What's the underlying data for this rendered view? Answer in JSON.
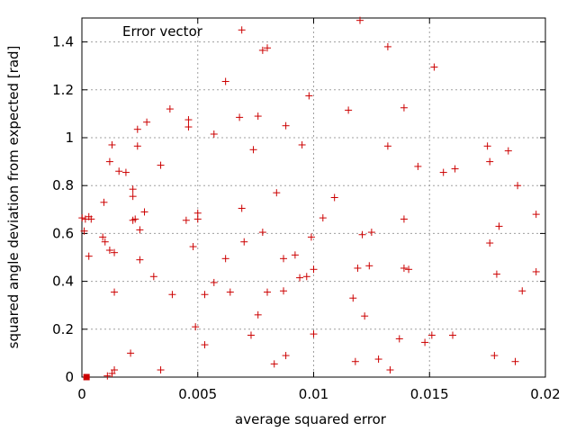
{
  "chart_data": {
    "type": "scatter",
    "xlabel": "average squared error",
    "ylabel": "squared angle deviation from expected [rad]",
    "xlim": [
      0,
      0.02
    ],
    "ylim": [
      0,
      1.5
    ],
    "x_ticks": [
      0,
      0.005,
      0.01,
      0.015,
      0.02
    ],
    "x_tick_labels": [
      "0",
      "0.005",
      "0.01",
      "0.015",
      "0.02"
    ],
    "y_ticks": [
      0,
      0.2,
      0.4,
      0.6,
      0.8,
      1.0,
      1.2,
      1.4
    ],
    "y_tick_labels": [
      "0",
      "0.2",
      "0.4",
      "0.6",
      "0.8",
      "1",
      "1.2",
      "1.4"
    ],
    "grid": true,
    "legend": "top-left",
    "series": [
      {
        "name": "Error vector",
        "color": "#cc0000",
        "marker": "plus",
        "points": [
          [
            1e-05,
            0.665
          ],
          [
            0.0001,
            0.61
          ],
          [
            0.00015,
            0.66
          ],
          [
            0.0003,
            0.67
          ],
          [
            0.0004,
            0.66
          ],
          [
            0.0003,
            0.505
          ],
          [
            0.0009,
            0.585
          ],
          [
            0.00095,
            0.73
          ],
          [
            0.001,
            0.565
          ],
          [
            0.0012,
            0.53
          ],
          [
            0.0012,
            0.9
          ],
          [
            0.0013,
            0.97
          ],
          [
            0.0014,
            0.52
          ],
          [
            0.0014,
            0.355
          ],
          [
            0.0016,
            0.86
          ],
          [
            0.0019,
            0.855
          ],
          [
            0.0022,
            0.785
          ],
          [
            0.0022,
            0.755
          ],
          [
            0.0022,
            0.655
          ],
          [
            0.0023,
            0.66
          ],
          [
            0.0024,
            1.035
          ],
          [
            0.0024,
            0.965
          ],
          [
            0.0025,
            0.615
          ],
          [
            0.0025,
            0.49
          ],
          [
            0.0027,
            0.69
          ],
          [
            0.0028,
            1.065
          ],
          [
            0.0031,
            0.42
          ],
          [
            0.0034,
            0.885
          ],
          [
            0.0034,
            0.03
          ],
          [
            0.0038,
            1.12
          ],
          [
            0.0039,
            0.345
          ],
          [
            0.0045,
            0.655
          ],
          [
            0.0046,
            1.075
          ],
          [
            0.0046,
            1.045
          ],
          [
            0.0048,
            0.545
          ],
          [
            0.0049,
            0.21
          ],
          [
            0.005,
            0.685
          ],
          [
            0.005,
            0.66
          ],
          [
            0.0053,
            0.345
          ],
          [
            0.0053,
            0.135
          ],
          [
            0.0057,
            1.015
          ],
          [
            0.0057,
            0.395
          ],
          [
            0.0062,
            1.235
          ],
          [
            0.0062,
            0.495
          ],
          [
            0.0064,
            0.355
          ],
          [
            0.0069,
            1.45
          ],
          [
            0.0068,
            1.085
          ],
          [
            0.0069,
            0.705
          ],
          [
            0.007,
            0.565
          ],
          [
            0.0073,
            0.175
          ],
          [
            0.0074,
            0.95
          ],
          [
            0.0076,
            1.09
          ],
          [
            0.0076,
            0.26
          ],
          [
            0.0078,
            1.365
          ],
          [
            0.0078,
            0.605
          ],
          [
            0.008,
            1.375
          ],
          [
            0.008,
            0.355
          ],
          [
            0.0083,
            0.055
          ],
          [
            0.0084,
            0.77
          ],
          [
            0.0087,
            0.495
          ],
          [
            0.0087,
            0.36
          ],
          [
            0.0088,
            1.05
          ],
          [
            0.0088,
            0.09
          ],
          [
            0.0092,
            0.51
          ],
          [
            0.0094,
            0.415
          ],
          [
            0.0095,
            0.97
          ],
          [
            0.0098,
            1.175
          ],
          [
            0.0097,
            0.42
          ],
          [
            0.0099,
            0.585
          ],
          [
            0.01,
            0.45
          ],
          [
            0.01,
            0.18
          ],
          [
            0.0104,
            0.665
          ],
          [
            0.0109,
            0.75
          ],
          [
            0.0115,
            1.115
          ],
          [
            0.0117,
            0.33
          ],
          [
            0.0118,
            0.065
          ],
          [
            0.0119,
            0.455
          ],
          [
            0.012,
            1.49
          ],
          [
            0.0121,
            0.595
          ],
          [
            0.0122,
            0.255
          ],
          [
            0.0124,
            0.465
          ],
          [
            0.0125,
            0.605
          ],
          [
            0.0128,
            0.075
          ],
          [
            0.0132,
            1.38
          ],
          [
            0.0132,
            0.965
          ],
          [
            0.0133,
            0.03
          ],
          [
            0.0137,
            0.16
          ],
          [
            0.0139,
            1.125
          ],
          [
            0.0139,
            0.66
          ],
          [
            0.0139,
            0.455
          ],
          [
            0.0141,
            0.45
          ],
          [
            0.0145,
            0.88
          ],
          [
            0.0148,
            0.145
          ],
          [
            0.0151,
            0.175
          ],
          [
            0.0152,
            1.295
          ],
          [
            0.0156,
            0.855
          ],
          [
            0.016,
            0.175
          ],
          [
            0.0161,
            0.87
          ],
          [
            0.0175,
            0.965
          ],
          [
            0.0176,
            0.9
          ],
          [
            0.0176,
            0.56
          ],
          [
            0.0178,
            0.09
          ],
          [
            0.0179,
            0.43
          ],
          [
            0.018,
            0.63
          ],
          [
            0.0184,
            0.945
          ],
          [
            0.0187,
            0.065
          ],
          [
            0.0188,
            0.8
          ],
          [
            0.019,
            0.36
          ],
          [
            0.0196,
            0.68
          ],
          [
            0.0196,
            0.44
          ],
          [
            0.0011,
            0.005
          ],
          [
            0.0013,
            0.015
          ],
          [
            0.0014,
            0.03
          ],
          [
            0.0021,
            0.1
          ]
        ]
      },
      {
        "name": "",
        "color": "#cc0000",
        "marker": "square",
        "points": [
          [
            0.0002,
            0.0
          ]
        ]
      }
    ]
  }
}
